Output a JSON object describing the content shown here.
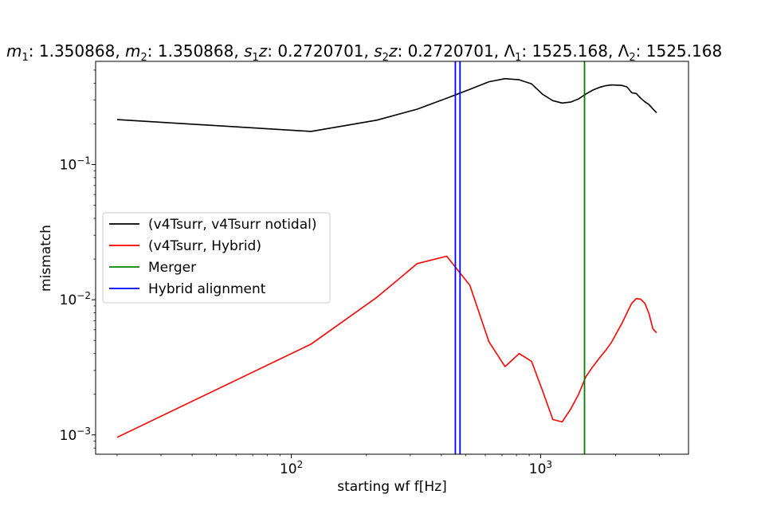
{
  "chart_data": {
    "type": "line",
    "title": "m1: 1.350868, m2: 1.350868, s1z: 0.2720701, s2z: 0.2720701, Λ1: 1525.168, Λ2: 1525.168",
    "title_parts": {
      "m1": "1.350868",
      "m2": "1.350868",
      "s1z": "0.2720701",
      "s2z": "0.2720701",
      "lambda1": "1525.168",
      "lambda2": "1525.168"
    },
    "xlabel": "starting wf f[Hz]",
    "ylabel": "mismatch",
    "xscale": "log",
    "yscale": "log",
    "xlim": [
      16.4,
      3920
    ],
    "ylim": [
      0.00072,
      0.58
    ],
    "xticks": [
      {
        "value": 100,
        "base": "10",
        "exp": "2"
      },
      {
        "value": 1000,
        "base": "10",
        "exp": "3"
      }
    ],
    "yticks": [
      {
        "value": 0.001,
        "base": "10",
        "exp": "−3"
      },
      {
        "value": 0.01,
        "base": "10",
        "exp": "−2"
      },
      {
        "value": 0.1,
        "base": "10",
        "exp": "−1"
      }
    ],
    "grid": false,
    "legend_position": "center-left",
    "series": [
      {
        "name": "(v4Tsurr, v4Tsurr notidal)",
        "color": "#000000",
        "points": [
          [
            20,
            0.215
          ],
          [
            120,
            0.176
          ],
          [
            220,
            0.213
          ],
          [
            320,
            0.257
          ],
          [
            420,
            0.31
          ],
          [
            520,
            0.36
          ],
          [
            620,
            0.41
          ],
          [
            720,
            0.432
          ],
          [
            820,
            0.424
          ],
          [
            920,
            0.395
          ],
          [
            1020,
            0.33
          ],
          [
            1120,
            0.297
          ],
          [
            1220,
            0.285
          ],
          [
            1320,
            0.29
          ],
          [
            1420,
            0.306
          ],
          [
            1520,
            0.333
          ],
          [
            1620,
            0.356
          ],
          [
            1720,
            0.372
          ],
          [
            1820,
            0.383
          ],
          [
            1920,
            0.388
          ],
          [
            2020,
            0.387
          ],
          [
            2120,
            0.385
          ],
          [
            2220,
            0.375
          ],
          [
            2320,
            0.34
          ],
          [
            2420,
            0.335
          ],
          [
            2520,
            0.31
          ],
          [
            2620,
            0.291
          ],
          [
            2720,
            0.278
          ],
          [
            2820,
            0.258
          ],
          [
            2920,
            0.242
          ]
        ]
      },
      {
        "name": "(v4Tsurr, Hybrid)",
        "color": "#ff0000",
        "points": [
          [
            20,
            0.00096
          ],
          [
            120,
            0.0047
          ],
          [
            220,
            0.0104
          ],
          [
            320,
            0.0185
          ],
          [
            420,
            0.021
          ],
          [
            520,
            0.0128
          ],
          [
            620,
            0.0049
          ],
          [
            720,
            0.0032
          ],
          [
            820,
            0.004
          ],
          [
            920,
            0.0035
          ],
          [
            1020,
            0.0021
          ],
          [
            1120,
            0.0013
          ],
          [
            1220,
            0.00125
          ],
          [
            1320,
            0.00155
          ],
          [
            1420,
            0.002
          ],
          [
            1520,
            0.0027
          ],
          [
            1620,
            0.0032
          ],
          [
            1720,
            0.0037
          ],
          [
            1820,
            0.0042
          ],
          [
            1920,
            0.0048
          ],
          [
            2020,
            0.0057
          ],
          [
            2120,
            0.0067
          ],
          [
            2220,
            0.008
          ],
          [
            2320,
            0.0094
          ],
          [
            2420,
            0.0102
          ],
          [
            2520,
            0.0101
          ],
          [
            2620,
            0.0094
          ],
          [
            2720,
            0.0079
          ],
          [
            2820,
            0.0061
          ],
          [
            2920,
            0.0057
          ]
        ]
      }
    ],
    "vlines": [
      {
        "name": "Merger",
        "color": "#008000",
        "x": [
          1500
        ]
      },
      {
        "name": "Hybrid alignment",
        "color": "#0000ff",
        "x": [
          455,
          475
        ]
      }
    ],
    "legend": [
      {
        "label": "(v4Tsurr, v4Tsurr notidal)",
        "color": "#000000"
      },
      {
        "label": "(v4Tsurr, Hybrid)",
        "color": "#ff0000"
      },
      {
        "label": "Merger",
        "color": "#008000"
      },
      {
        "label": "Hybrid alignment",
        "color": "#0000ff"
      }
    ]
  }
}
